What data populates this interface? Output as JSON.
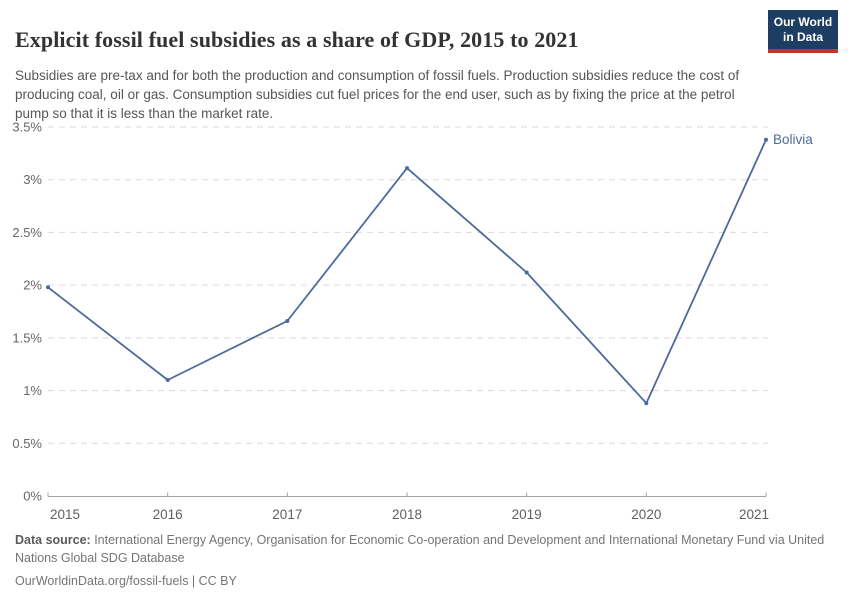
{
  "header": {
    "title": "Explicit fossil fuel subsidies as a share of GDP, 2015 to 2021",
    "subtitle": "Subsidies are pre-tax and for both the production and consumption of fossil fuels. Production subsidies reduce the cost of producing coal, oil or gas. Consumption subsidies cut fuel prices for the end user, such as by fixing the price at the petrol pump so that it is less than the market rate.",
    "logo_line1": "Our World",
    "logo_line2": "in Data"
  },
  "chart_data": {
    "type": "line",
    "title": "Explicit fossil fuel subsidies as a share of GDP, 2015 to 2021",
    "x": [
      2015,
      2016,
      2017,
      2018,
      2019,
      2020,
      2021
    ],
    "x_tick_labels": [
      "2015",
      "2016",
      "2017",
      "2018",
      "2019",
      "2020",
      "2021"
    ],
    "series": [
      {
        "name": "Bolivia",
        "color": "#4c6a9c",
        "values": [
          1.98,
          1.1,
          1.66,
          3.11,
          2.12,
          0.88,
          3.38
        ]
      }
    ],
    "xlabel": "",
    "ylabel": "",
    "ylim": [
      0,
      3.5
    ],
    "yticks": [
      {
        "value": 0,
        "label": "0%"
      },
      {
        "value": 0.5,
        "label": "0.5%"
      },
      {
        "value": 1,
        "label": "1%"
      },
      {
        "value": 1.5,
        "label": "1.5%"
      },
      {
        "value": 2,
        "label": "2%"
      },
      {
        "value": 2.5,
        "label": "2.5%"
      },
      {
        "value": 3,
        "label": "3%"
      },
      {
        "value": 3.5,
        "label": "3.5%"
      }
    ],
    "grid": "horizontal-dashed",
    "legend_position": "end-of-line-label"
  },
  "footer": {
    "datasource_label": "Data source:",
    "datasource_text": " International Energy Agency, Organisation for Economic Co-operation and Development and International Monetary Fund via United Nations Global SDG Database",
    "url_line": "OurWorldinData.org/fossil-fuels | CC BY"
  },
  "colors": {
    "line": "#4c6a9c",
    "grid": "#dadada",
    "axis": "#a1a1a1",
    "tick_label": "#666666",
    "logo_bg": "#1d3d63",
    "logo_stripe": "#c5322d"
  }
}
